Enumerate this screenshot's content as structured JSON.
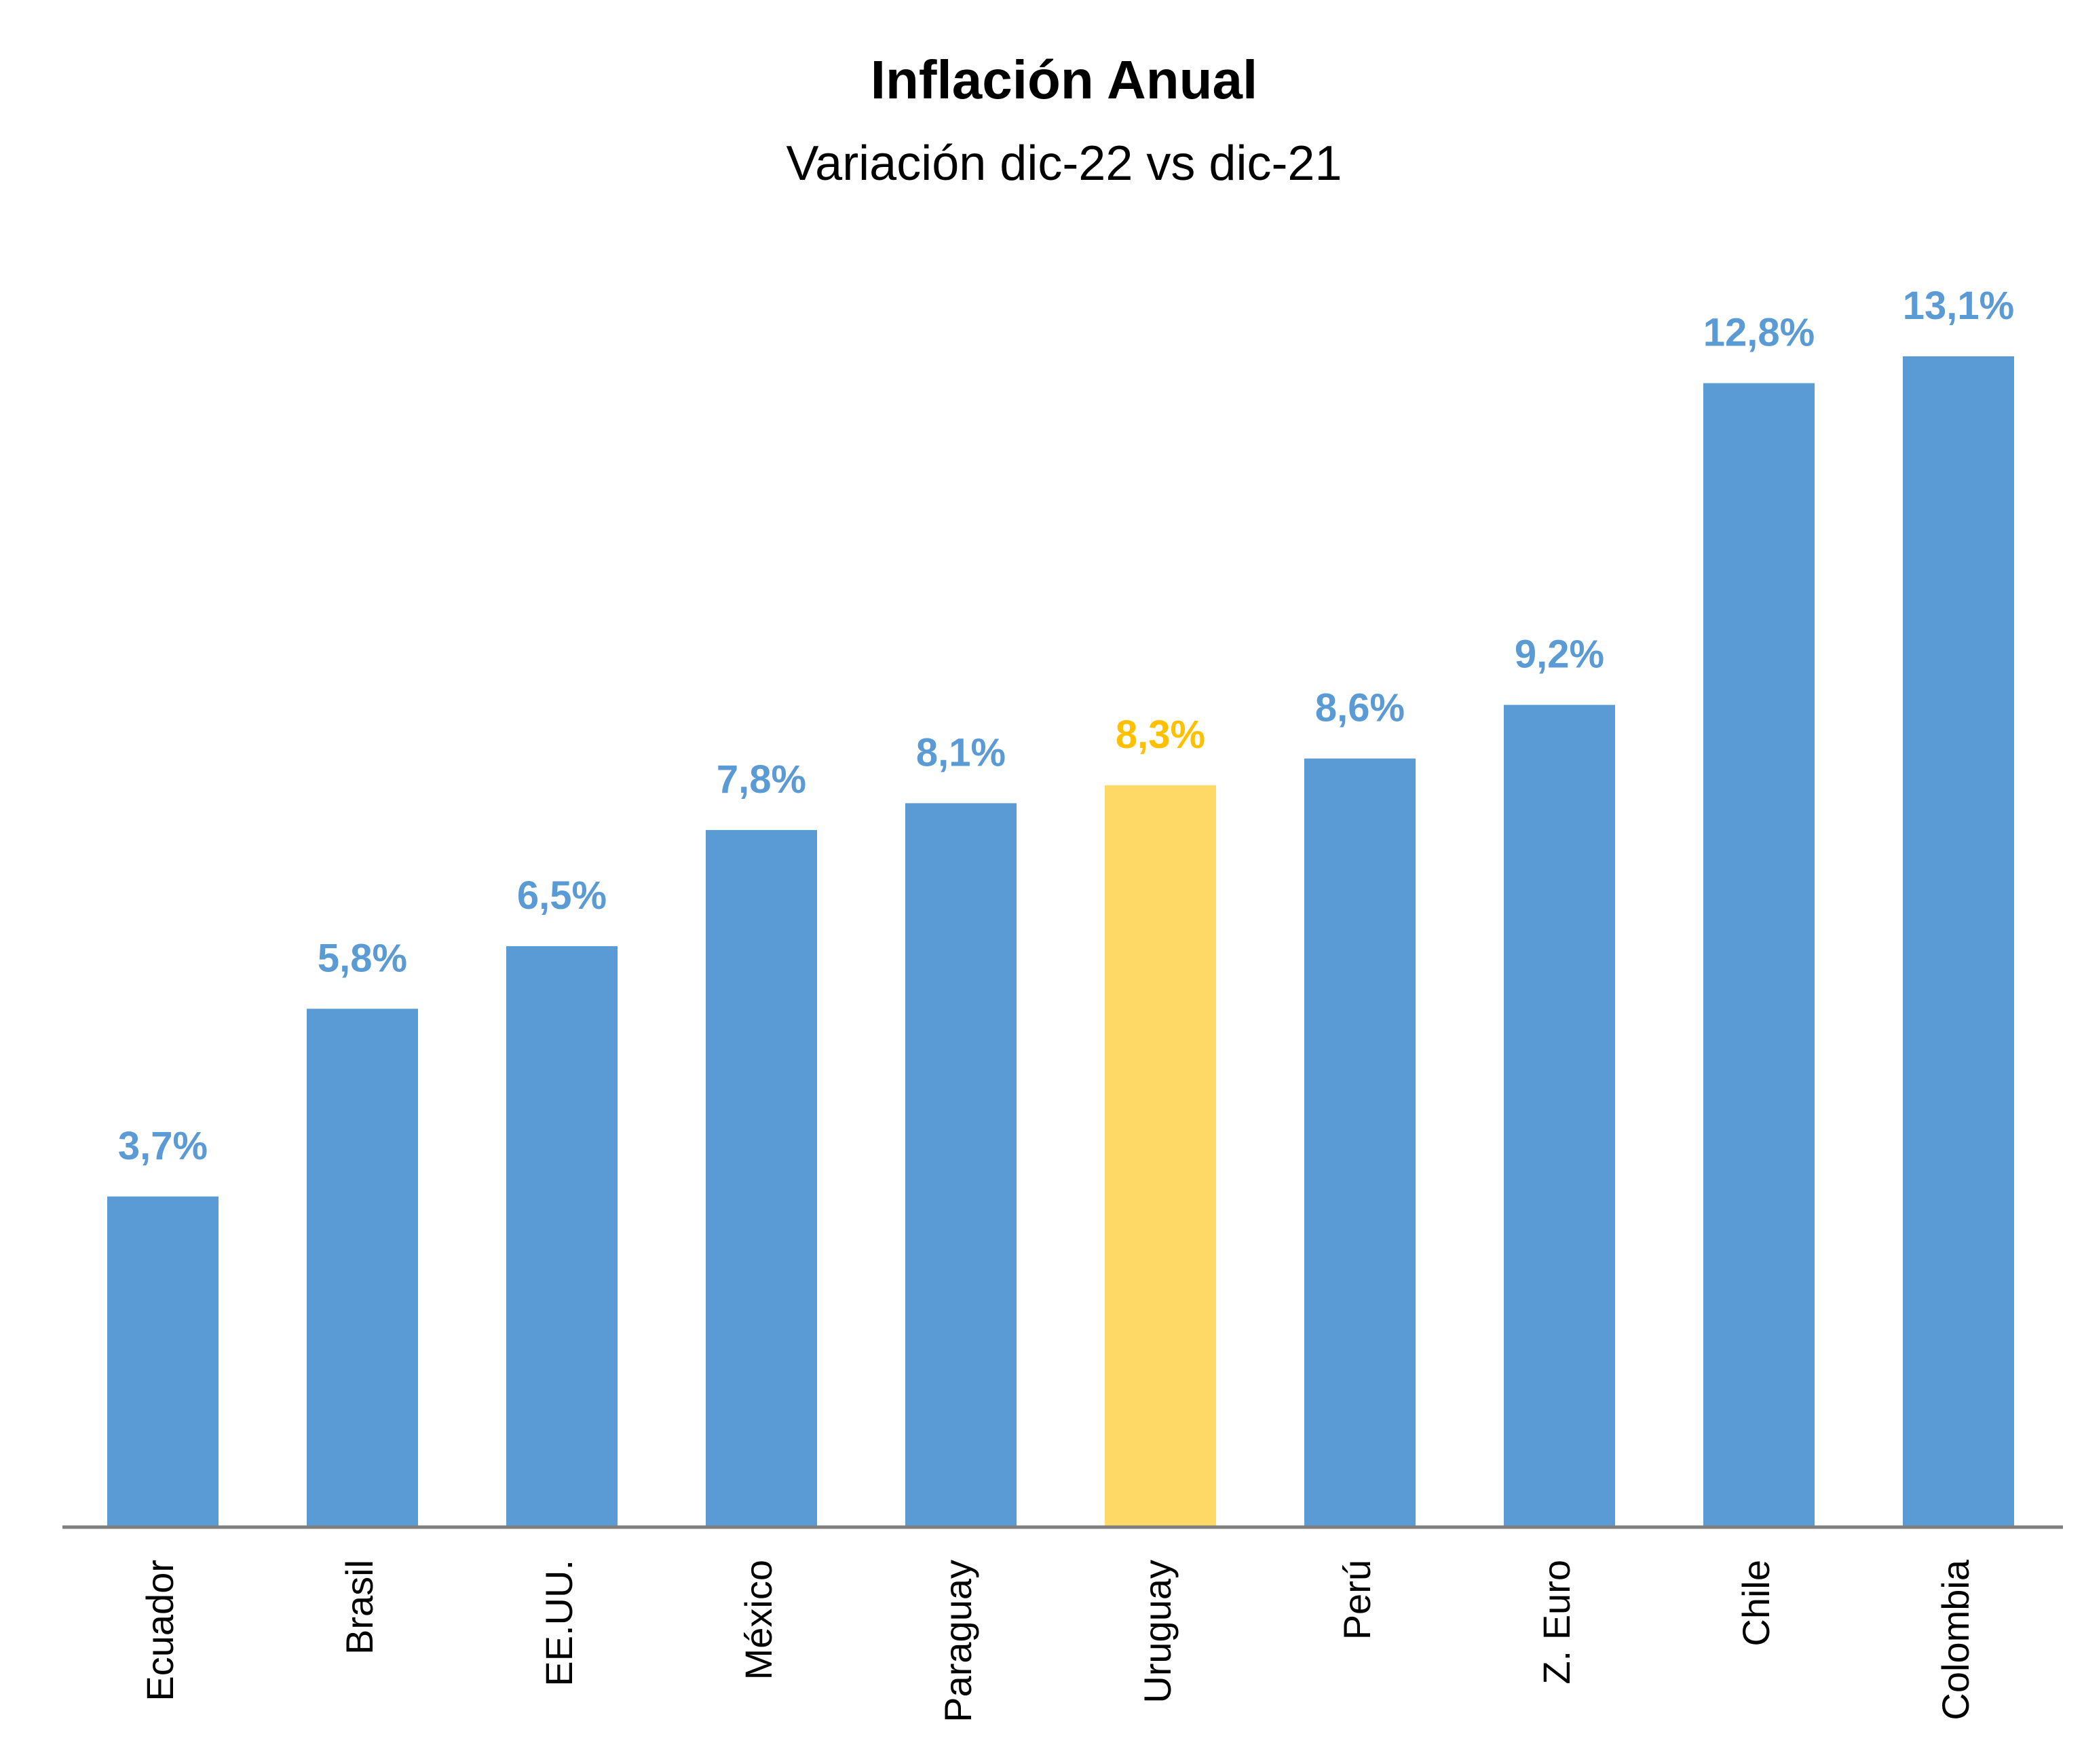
{
  "chart_data": {
    "type": "bar",
    "title": "Inflación Anual",
    "subtitle": "Variación dic-22 vs dic-21",
    "xlabel": "",
    "ylabel": "",
    "ylim": [
      0,
      13.1
    ],
    "grid": false,
    "legend": "none",
    "categories": [
      "Ecuador",
      "Brasil",
      "EE.UU.",
      "México",
      "Paraguay",
      "Uruguay",
      "Perú",
      "Z. Euro",
      "Chile",
      "Colombia"
    ],
    "values": [
      3.7,
      5.8,
      6.5,
      7.8,
      8.1,
      8.3,
      8.6,
      9.2,
      12.8,
      13.1
    ],
    "labels": [
      "3,7%",
      "5,8%",
      "6,5%",
      "7,8%",
      "8,1%",
      "8,3%",
      "8,6%",
      "9,2%",
      "12,8%",
      "13,1%"
    ],
    "highlight_index": 5,
    "colors": {
      "bar": "#5B9BD5",
      "highlight": "#FFD966",
      "label": "#5B9BD5",
      "highlight_label": "#FFC000",
      "axis": "#7F7F7F"
    }
  }
}
